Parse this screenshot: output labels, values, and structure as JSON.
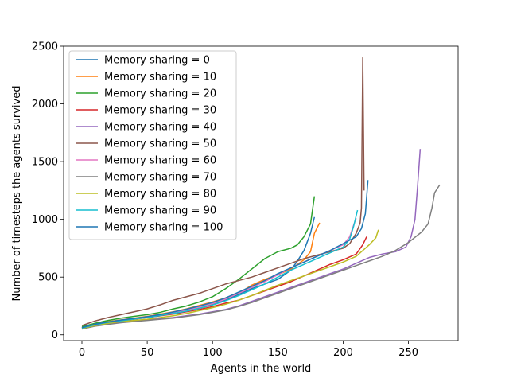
{
  "chart_data": {
    "type": "line",
    "title": "",
    "xlabel": "Agents in the world",
    "ylabel": "Number of timesteps the agents survived",
    "xlim": [
      -14,
      288
    ],
    "ylim": [
      -50,
      2500
    ],
    "xticks": [
      0,
      50,
      100,
      150,
      200,
      250
    ],
    "yticks": [
      0,
      500,
      1000,
      1500,
      2000,
      2500
    ],
    "legend_position": "upper-left",
    "grid": false,
    "series": [
      {
        "name": "Memory sharing = 0",
        "color": "#1f77b4",
        "points": [
          [
            0,
            60
          ],
          [
            10,
            90
          ],
          [
            20,
            110
          ],
          [
            30,
            125
          ],
          [
            40,
            140
          ],
          [
            50,
            150
          ],
          [
            60,
            165
          ],
          [
            70,
            190
          ],
          [
            80,
            215
          ],
          [
            90,
            240
          ],
          [
            100,
            265
          ],
          [
            110,
            300
          ],
          [
            120,
            350
          ],
          [
            130,
            400
          ],
          [
            140,
            440
          ],
          [
            150,
            480
          ],
          [
            160,
            560
          ],
          [
            165,
            640
          ],
          [
            170,
            730
          ],
          [
            175,
            880
          ],
          [
            178,
            1020
          ]
        ]
      },
      {
        "name": "Memory sharing = 10",
        "color": "#ff7f0e",
        "points": [
          [
            0,
            65
          ],
          [
            10,
            95
          ],
          [
            20,
            115
          ],
          [
            30,
            130
          ],
          [
            40,
            145
          ],
          [
            50,
            160
          ],
          [
            60,
            180
          ],
          [
            70,
            200
          ],
          [
            80,
            225
          ],
          [
            90,
            255
          ],
          [
            100,
            285
          ],
          [
            110,
            320
          ],
          [
            120,
            360
          ],
          [
            130,
            430
          ],
          [
            140,
            480
          ],
          [
            150,
            520
          ],
          [
            160,
            570
          ],
          [
            170,
            650
          ],
          [
            175,
            720
          ],
          [
            178,
            880
          ],
          [
            182,
            970
          ]
        ]
      },
      {
        "name": "Memory sharing = 20",
        "color": "#2ca02c",
        "points": [
          [
            0,
            70
          ],
          [
            10,
            100
          ],
          [
            20,
            125
          ],
          [
            30,
            145
          ],
          [
            40,
            160
          ],
          [
            50,
            175
          ],
          [
            60,
            195
          ],
          [
            70,
            225
          ],
          [
            80,
            250
          ],
          [
            90,
            285
          ],
          [
            100,
            330
          ],
          [
            110,
            400
          ],
          [
            120,
            480
          ],
          [
            130,
            570
          ],
          [
            140,
            660
          ],
          [
            150,
            720
          ],
          [
            160,
            750
          ],
          [
            165,
            780
          ],
          [
            170,
            850
          ],
          [
            175,
            960
          ],
          [
            178,
            1200
          ]
        ]
      },
      {
        "name": "Memory sharing = 30",
        "color": "#d62728",
        "points": [
          [
            0,
            60
          ],
          [
            10,
            85
          ],
          [
            20,
            105
          ],
          [
            30,
            120
          ],
          [
            40,
            135
          ],
          [
            50,
            150
          ],
          [
            60,
            165
          ],
          [
            70,
            180
          ],
          [
            80,
            200
          ],
          [
            90,
            220
          ],
          [
            100,
            245
          ],
          [
            110,
            275
          ],
          [
            120,
            300
          ],
          [
            130,
            340
          ],
          [
            140,
            380
          ],
          [
            150,
            420
          ],
          [
            160,
            460
          ],
          [
            170,
            510
          ],
          [
            180,
            560
          ],
          [
            190,
            610
          ],
          [
            200,
            650
          ],
          [
            210,
            700
          ],
          [
            215,
            780
          ],
          [
            218,
            850
          ]
        ]
      },
      {
        "name": "Memory sharing = 40",
        "color": "#9467bd",
        "points": [
          [
            0,
            55
          ],
          [
            10,
            80
          ],
          [
            20,
            95
          ],
          [
            30,
            110
          ],
          [
            40,
            120
          ],
          [
            50,
            130
          ],
          [
            60,
            140
          ],
          [
            70,
            150
          ],
          [
            80,
            165
          ],
          [
            90,
            180
          ],
          [
            100,
            200
          ],
          [
            110,
            220
          ],
          [
            120,
            250
          ],
          [
            130,
            290
          ],
          [
            140,
            330
          ],
          [
            150,
            370
          ],
          [
            160,
            410
          ],
          [
            170,
            450
          ],
          [
            180,
            490
          ],
          [
            190,
            530
          ],
          [
            200,
            570
          ],
          [
            210,
            620
          ],
          [
            220,
            670
          ],
          [
            230,
            700
          ],
          [
            240,
            720
          ],
          [
            248,
            760
          ],
          [
            252,
            850
          ],
          [
            255,
            1000
          ],
          [
            257,
            1290
          ],
          [
            259,
            1610
          ]
        ]
      },
      {
        "name": "Memory sharing = 50",
        "color": "#8c564b",
        "points": [
          [
            0,
            80
          ],
          [
            10,
            120
          ],
          [
            20,
            150
          ],
          [
            30,
            175
          ],
          [
            40,
            200
          ],
          [
            50,
            225
          ],
          [
            60,
            260
          ],
          [
            70,
            300
          ],
          [
            80,
            330
          ],
          [
            90,
            360
          ],
          [
            100,
            400
          ],
          [
            110,
            440
          ],
          [
            120,
            470
          ],
          [
            130,
            500
          ],
          [
            140,
            540
          ],
          [
            150,
            580
          ],
          [
            160,
            620
          ],
          [
            170,
            660
          ],
          [
            180,
            690
          ],
          [
            190,
            720
          ],
          [
            200,
            750
          ],
          [
            205,
            790
          ],
          [
            210,
            880
          ],
          [
            213,
            970
          ],
          [
            214,
            1100
          ],
          [
            215,
            2400
          ],
          [
            216,
            1250
          ]
        ]
      },
      {
        "name": "Memory sharing = 60",
        "color": "#e377c2",
        "points": [
          [
            0,
            60
          ],
          [
            10,
            90
          ],
          [
            20,
            110
          ],
          [
            30,
            125
          ],
          [
            40,
            140
          ],
          [
            50,
            155
          ],
          [
            60,
            175
          ],
          [
            70,
            195
          ],
          [
            80,
            215
          ],
          [
            90,
            240
          ],
          [
            100,
            270
          ],
          [
            110,
            310
          ],
          [
            120,
            360
          ],
          [
            130,
            410
          ],
          [
            140,
            460
          ],
          [
            150,
            520
          ],
          [
            160,
            580
          ],
          [
            170,
            630
          ],
          [
            180,
            680
          ],
          [
            190,
            730
          ],
          [
            200,
            780
          ],
          [
            205,
            850
          ],
          [
            208,
            950
          ],
          [
            210,
            1010
          ]
        ]
      },
      {
        "name": "Memory sharing = 70",
        "color": "#7f7f7f",
        "points": [
          [
            0,
            50
          ],
          [
            10,
            75
          ],
          [
            20,
            90
          ],
          [
            30,
            105
          ],
          [
            40,
            115
          ],
          [
            50,
            125
          ],
          [
            60,
            135
          ],
          [
            70,
            145
          ],
          [
            80,
            160
          ],
          [
            90,
            175
          ],
          [
            100,
            195
          ],
          [
            110,
            215
          ],
          [
            120,
            245
          ],
          [
            130,
            280
          ],
          [
            140,
            320
          ],
          [
            150,
            360
          ],
          [
            160,
            400
          ],
          [
            170,
            440
          ],
          [
            180,
            480
          ],
          [
            190,
            520
          ],
          [
            200,
            560
          ],
          [
            210,
            600
          ],
          [
            220,
            640
          ],
          [
            230,
            680
          ],
          [
            240,
            730
          ],
          [
            250,
            800
          ],
          [
            260,
            890
          ],
          [
            265,
            960
          ],
          [
            268,
            1100
          ],
          [
            270,
            1230
          ],
          [
            274,
            1300
          ]
        ]
      },
      {
        "name": "Memory sharing = 80",
        "color": "#bcbd22",
        "points": [
          [
            0,
            55
          ],
          [
            10,
            80
          ],
          [
            20,
            100
          ],
          [
            30,
            115
          ],
          [
            40,
            125
          ],
          [
            50,
            135
          ],
          [
            60,
            150
          ],
          [
            70,
            165
          ],
          [
            80,
            185
          ],
          [
            90,
            210
          ],
          [
            100,
            235
          ],
          [
            110,
            265
          ],
          [
            120,
            300
          ],
          [
            130,
            340
          ],
          [
            140,
            385
          ],
          [
            150,
            430
          ],
          [
            160,
            470
          ],
          [
            170,
            510
          ],
          [
            180,
            550
          ],
          [
            190,
            590
          ],
          [
            200,
            630
          ],
          [
            210,
            680
          ],
          [
            215,
            730
          ],
          [
            220,
            780
          ],
          [
            225,
            840
          ],
          [
            227,
            910
          ]
        ]
      },
      {
        "name": "Memory sharing = 90",
        "color": "#17becf",
        "points": [
          [
            0,
            58
          ],
          [
            10,
            88
          ],
          [
            20,
            108
          ],
          [
            30,
            122
          ],
          [
            40,
            137
          ],
          [
            50,
            150
          ],
          [
            60,
            168
          ],
          [
            70,
            185
          ],
          [
            80,
            205
          ],
          [
            90,
            230
          ],
          [
            100,
            258
          ],
          [
            110,
            295
          ],
          [
            120,
            340
          ],
          [
            130,
            390
          ],
          [
            140,
            440
          ],
          [
            150,
            500
          ],
          [
            160,
            560
          ],
          [
            170,
            610
          ],
          [
            180,
            660
          ],
          [
            190,
            710
          ],
          [
            200,
            760
          ],
          [
            205,
            830
          ],
          [
            208,
            940
          ],
          [
            211,
            1080
          ]
        ]
      },
      {
        "name": "Memory sharing = 100",
        "color": "#1f77b4",
        "points": [
          [
            0,
            62
          ],
          [
            10,
            92
          ],
          [
            20,
            112
          ],
          [
            30,
            128
          ],
          [
            40,
            143
          ],
          [
            50,
            158
          ],
          [
            60,
            176
          ],
          [
            70,
            198
          ],
          [
            80,
            222
          ],
          [
            90,
            250
          ],
          [
            100,
            280
          ],
          [
            110,
            320
          ],
          [
            120,
            370
          ],
          [
            130,
            420
          ],
          [
            140,
            470
          ],
          [
            150,
            530
          ],
          [
            160,
            580
          ],
          [
            170,
            630
          ],
          [
            180,
            680
          ],
          [
            190,
            730
          ],
          [
            200,
            790
          ],
          [
            210,
            850
          ],
          [
            214,
            920
          ],
          [
            217,
            1050
          ],
          [
            219,
            1340
          ]
        ]
      }
    ]
  }
}
